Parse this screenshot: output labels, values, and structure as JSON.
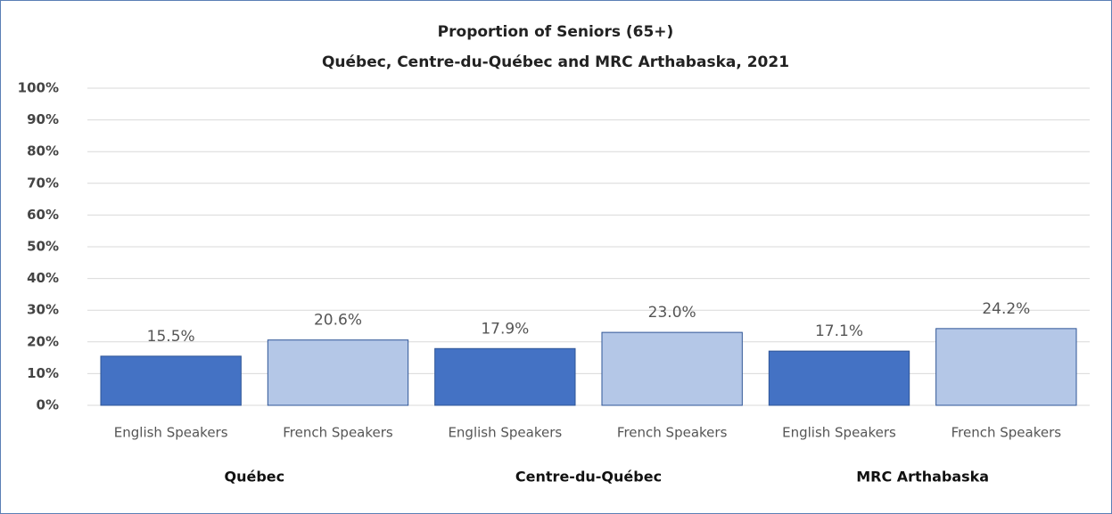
{
  "chart_data": {
    "type": "bar",
    "title": "Proportion of Seniors (65+)",
    "subtitle": "Québec, Centre-du-Québec and MRC Arthabaska,  2021",
    "categories": [
      "English Speakers",
      "French Speakers",
      "English Speakers",
      "French Speakers",
      "English Speakers",
      "French Speakers"
    ],
    "groups": [
      "Québec",
      "Centre-du-Québec",
      "MRC Arthabaska"
    ],
    "values": [
      15.5,
      20.6,
      17.9,
      23.0,
      17.1,
      24.2
    ],
    "value_labels": [
      "15.5%",
      "20.6%",
      "17.9%",
      "23.0%",
      "17.1%",
      "24.2%"
    ],
    "colors": [
      "#4472c4",
      "#b4c7e7",
      "#4472c4",
      "#b4c7e7",
      "#4472c4",
      "#b4c7e7"
    ],
    "ylim": [
      0,
      100
    ],
    "yticks": [
      {
        "value": 0,
        "label": "0%"
      },
      {
        "value": 10,
        "label": "10%"
      },
      {
        "value": 20,
        "label": "20%"
      },
      {
        "value": 30,
        "label": "30%"
      },
      {
        "value": 40,
        "label": "40%"
      },
      {
        "value": 50,
        "label": "50%"
      },
      {
        "value": 60,
        "label": "60%"
      },
      {
        "value": 70,
        "label": "70%"
      },
      {
        "value": 80,
        "label": "80%"
      },
      {
        "value": 90,
        "label": "90%"
      },
      {
        "value": 100,
        "label": "100%"
      }
    ],
    "grid": true
  }
}
